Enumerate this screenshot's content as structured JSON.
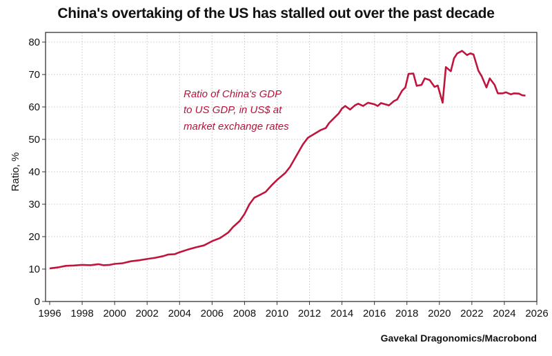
{
  "chart_data": {
    "type": "line",
    "title": "China's overtaking of the US has stalled out over the past decade",
    "ylabel": "Ratio, %",
    "xlabel": "",
    "source": "Gavekal Dragonomics/Macrobond",
    "annotation": [
      "Ratio of China's GDP",
      "to US GDP, in US$ at",
      "market exchange rates"
    ],
    "xlim": [
      1996,
      2026
    ],
    "ylim": [
      0,
      80
    ],
    "xticks": [
      "1996",
      "1998",
      "2000",
      "2002",
      "2004",
      "2006",
      "2008",
      "2010",
      "2012",
      "2014",
      "2016",
      "2018",
      "2020",
      "2022",
      "2024",
      "2026"
    ],
    "yticks": [
      "0",
      "10",
      "20",
      "30",
      "40",
      "50",
      "60",
      "70",
      "80"
    ],
    "grid": true,
    "legend": "none",
    "line_color": "#c0143c",
    "series": [
      {
        "x": [
          1996.0,
          1996.5,
          1997.0,
          1997.5,
          1998.0,
          1998.5,
          1999.0,
          1999.3,
          1999.7,
          2000.0,
          2000.5,
          2001.0,
          2001.5,
          2002.0,
          2002.5,
          2003.0,
          2003.3,
          2003.7,
          2004.0,
          2004.5,
          2005.0,
          2005.5,
          2006.0,
          2006.5,
          2007.0,
          2007.3,
          2007.7,
          2008.0,
          2008.3,
          2008.6,
          2009.0,
          2009.3,
          2009.7,
          2010.0,
          2010.5,
          2010.8,
          2011.2,
          2011.6,
          2011.9,
          2012.3,
          2012.7,
          2013.0,
          2013.2,
          2013.5,
          2013.8,
          2014.0,
          2014.2,
          2014.5,
          2014.8,
          2015.0,
          2015.3,
          2015.6,
          2016.0,
          2016.2,
          2016.4,
          2016.9,
          2017.2,
          2017.4,
          2017.7,
          2017.9,
          2018.1,
          2018.4,
          2018.6,
          2018.9,
          2019.1,
          2019.4,
          2019.7,
          2019.9,
          2020.2,
          2020.4,
          2020.7,
          2020.9,
          2021.1,
          2021.4,
          2021.7,
          2021.9,
          2022.1,
          2022.4,
          2022.6,
          2022.9,
          2023.1,
          2023.4,
          2023.6,
          2023.9,
          2024.1,
          2024.4,
          2024.6,
          2024.9,
          2025.1,
          2025.3
        ],
        "y": [
          10.2,
          10.5,
          11.0,
          11.1,
          11.3,
          11.2,
          11.5,
          11.2,
          11.3,
          11.6,
          11.8,
          12.4,
          12.7,
          13.1,
          13.5,
          14.0,
          14.5,
          14.6,
          15.2,
          16.0,
          16.7,
          17.3,
          18.6,
          19.6,
          21.3,
          23.0,
          24.8,
          27.0,
          30.0,
          32.0,
          33.0,
          33.8,
          36.0,
          37.5,
          39.6,
          41.5,
          45.0,
          48.5,
          50.5,
          51.7,
          52.9,
          53.5,
          55.0,
          56.5,
          58.0,
          59.5,
          60.3,
          59.2,
          60.5,
          61.0,
          60.3,
          61.3,
          60.8,
          60.3,
          61.2,
          60.5,
          61.8,
          62.3,
          65.0,
          66.0,
          70.2,
          70.3,
          66.5,
          66.8,
          68.8,
          68.3,
          66.2,
          66.6,
          61.3,
          72.3,
          71.0,
          75.0,
          76.5,
          77.3,
          76.0,
          76.5,
          76.2,
          71.2,
          69.5,
          66.0,
          68.8,
          66.8,
          64.2,
          64.2,
          64.5,
          63.9,
          64.2,
          64.1,
          63.6,
          63.5
        ]
      }
    ]
  }
}
